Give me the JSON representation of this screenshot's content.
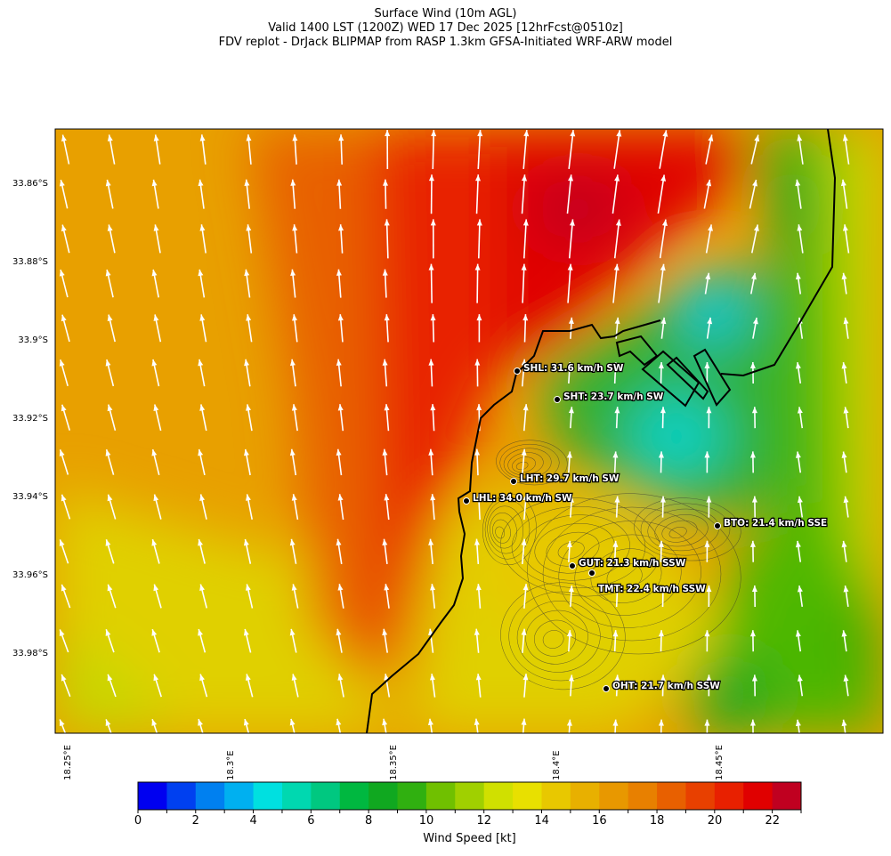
{
  "title": {
    "line1": "Surface Wind (10m AGL)",
    "line2": "Valid 1400 LST (1200Z) WED 17 Dec 2025 [12hrFcst@0510z]",
    "line3": "FDV replot - DrJack BLIPMAP from RASP 1.3km GFSA-Initiated WRF-ARW model"
  },
  "axes": {
    "lat_labels": [
      "33.86°S",
      "33.88°S",
      "33.9°S",
      "33.92°S",
      "33.94°S",
      "33.96°S",
      "33.98°S"
    ],
    "lon_labels": [
      "18.25°E",
      "18.3°E",
      "18.35°E",
      "18.4°E",
      "18.45°E"
    ]
  },
  "stations": [
    {
      "label": "SHL: 31.6 km/h SW"
    },
    {
      "label": "SHT: 23.7 km/h SW"
    },
    {
      "label": "LHT: 29.7 km/h SW"
    },
    {
      "label": "LHL: 34.0 km/h SW"
    },
    {
      "label": "BTO: 21.4 km/h SSE"
    },
    {
      "label": "GUT: 21.3 km/h SSW"
    },
    {
      "label": "TMT: 22.4 km/h SSW"
    },
    {
      "label": "OHT: 21.7 km/h SSW"
    }
  ],
  "colorbar": {
    "title": "Wind Speed [kt]",
    "ticks": [
      "0",
      "2",
      "4",
      "6",
      "8",
      "10",
      "12",
      "14",
      "16",
      "18",
      "20",
      "22"
    ],
    "colors": [
      "#0000f0",
      "#0040f0",
      "#0080f0",
      "#00b0f0",
      "#00e0e0",
      "#00d8b0",
      "#00c880",
      "#00b840",
      "#10a820",
      "#30b010",
      "#70c000",
      "#a0d000",
      "#d0e000",
      "#e8e000",
      "#e8c800",
      "#e8b000",
      "#e89800",
      "#e88000",
      "#e86000",
      "#e84000",
      "#e82000",
      "#e00000",
      "#c00020"
    ]
  }
}
